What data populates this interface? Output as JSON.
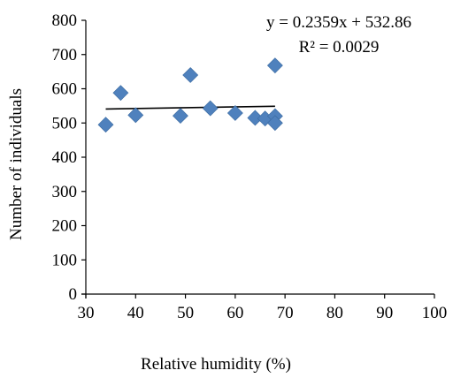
{
  "chart_data": {
    "type": "scatter",
    "xlabel": "Relative humidity (%)",
    "ylabel": "Number of individuals",
    "xlim": [
      30,
      100
    ],
    "ylim": [
      0,
      800
    ],
    "x_ticks": [
      "30",
      "40",
      "50",
      "60",
      "70",
      "80",
      "90",
      "100"
    ],
    "y_ticks": [
      "0",
      "100",
      "200",
      "300",
      "400",
      "500",
      "600",
      "700",
      "800"
    ],
    "grid": false,
    "legend": "none",
    "marker": "diamond",
    "marker_color": "#4f81bd",
    "series": [
      {
        "points": [
          {
            "x": 34,
            "y": 495
          },
          {
            "x": 37,
            "y": 588
          },
          {
            "x": 40,
            "y": 523
          },
          {
            "x": 49,
            "y": 521
          },
          {
            "x": 51,
            "y": 640
          },
          {
            "x": 55,
            "y": 543
          },
          {
            "x": 60,
            "y": 529
          },
          {
            "x": 64,
            "y": 515
          },
          {
            "x": 66,
            "y": 513
          },
          {
            "x": 68,
            "y": 668
          },
          {
            "x": 68,
            "y": 520
          },
          {
            "x": 68,
            "y": 500
          }
        ]
      }
    ],
    "trendline": {
      "type": "linear",
      "slope": 0.2359,
      "intercept": 532.86,
      "x_range": [
        34,
        68
      ],
      "color": "#000000",
      "equation_label": "y = 0.2359x + 532.86",
      "r2_label": "R² = 0.0029"
    }
  }
}
